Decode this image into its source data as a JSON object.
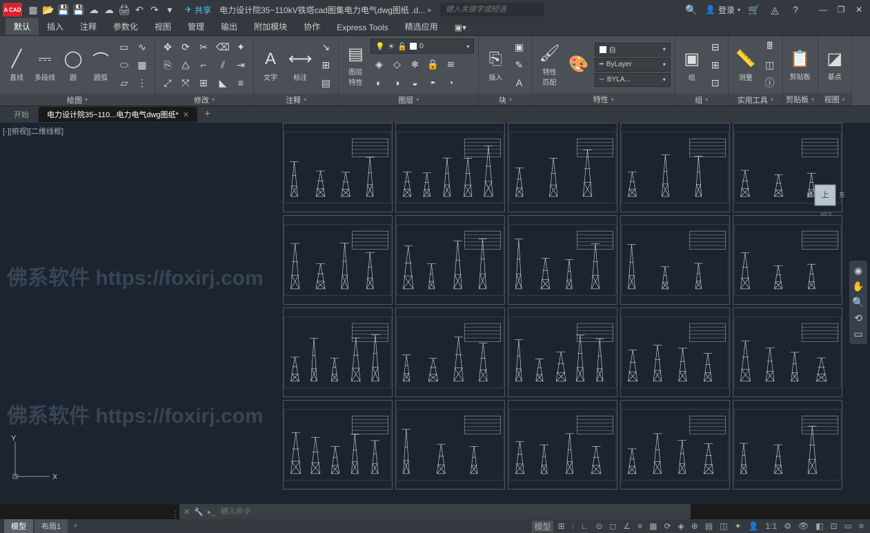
{
  "app": {
    "logo": "A CAD"
  },
  "titlebar": {
    "share": "共享",
    "filename": "电力设计院35~110kV铁塔cad图集电力电气dwg图纸 .d...",
    "search_placeholder": "键入关键字或短语",
    "login": "登录"
  },
  "ribbon_tabs": [
    "默认",
    "插入",
    "注释",
    "参数化",
    "视图",
    "管理",
    "输出",
    "附加模块",
    "协作",
    "Express Tools",
    "精选应用"
  ],
  "ribbon_active": 0,
  "panels": {
    "draw": {
      "title": "绘图",
      "line": "直线",
      "polyline": "多段线",
      "circle": "圆",
      "arc": "圆弧"
    },
    "modify": {
      "title": "修改"
    },
    "annotate": {
      "title": "注释",
      "text": "文字",
      "dim": "标注"
    },
    "layers": {
      "title": "图层",
      "layerprop": "图层\n特性",
      "current": "0"
    },
    "block": {
      "title": "块",
      "insert": "插入"
    },
    "props": {
      "title": "特性",
      "propbtn": "特性\n匹配",
      "color": "白",
      "bylayer": "ByLayer",
      "byla": "BYLA..."
    },
    "group": {
      "title": "组",
      "btn": "组"
    },
    "util": {
      "title": "实用工具",
      "measure": "测量"
    },
    "clip": {
      "title": "剪贴板",
      "btn": "剪贴板"
    },
    "view": {
      "title": "视图",
      "btn": "基点"
    }
  },
  "file_tabs": {
    "start": "开始",
    "active": "电力设计院35~110...电力电气dwg图纸*"
  },
  "viewport_label": "[-][俯视][二维线框]",
  "watermark": "佛系软件 https://foxirj.com",
  "viewcube": {
    "top": "上",
    "w": "西",
    "e": "东",
    "wcs": "WCS"
  },
  "ucs": {
    "x": "X",
    "y": "Y"
  },
  "cmd": {
    "placeholder": "键入命令"
  },
  "status": {
    "model": "模型",
    "layout1": "布局1",
    "model_btn": "模型"
  },
  "colors": {
    "bg": "#1c2430",
    "panel": "#4a5056",
    "accent": "#d92231",
    "draw_stroke": "#cfd8dc"
  }
}
